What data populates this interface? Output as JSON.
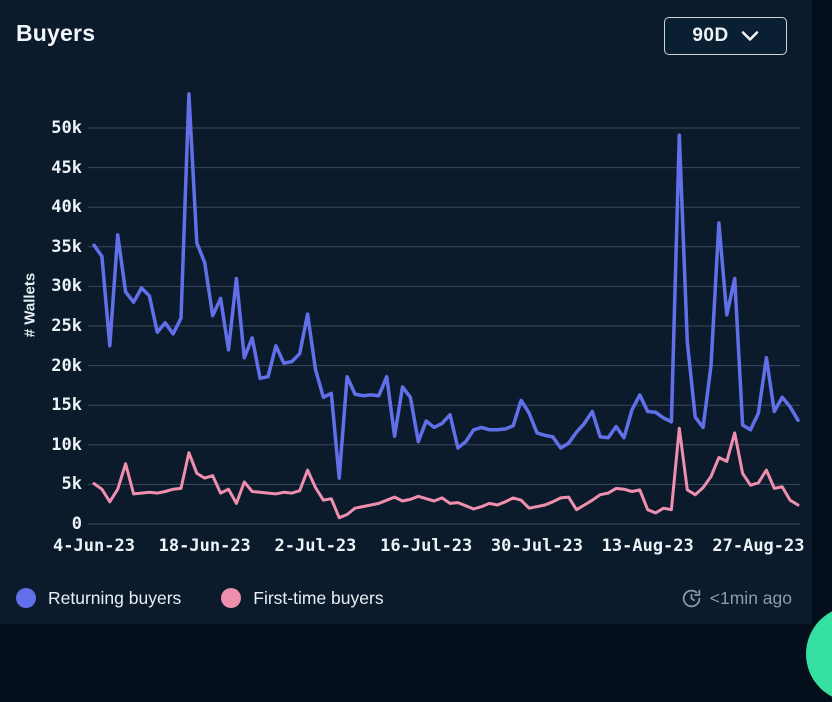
{
  "header": {
    "title": "Buyers",
    "range_selector": {
      "value": "90D"
    }
  },
  "chart_data": {
    "type": "line",
    "title": "Buyers",
    "xlabel": "",
    "ylabel": "# Wallets",
    "ylim": [
      0,
      55000
    ],
    "grid": true,
    "legend_position": "bottom",
    "y_ticks": [
      {
        "value": 0,
        "label": "0"
      },
      {
        "value": 5000,
        "label": "5k"
      },
      {
        "value": 10000,
        "label": "10k"
      },
      {
        "value": 15000,
        "label": "15k"
      },
      {
        "value": 20000,
        "label": "20k"
      },
      {
        "value": 25000,
        "label": "25k"
      },
      {
        "value": 30000,
        "label": "30k"
      },
      {
        "value": 35000,
        "label": "35k"
      },
      {
        "value": 40000,
        "label": "40k"
      },
      {
        "value": 45000,
        "label": "45k"
      },
      {
        "value": 50000,
        "label": "50k"
      }
    ],
    "x_ticks": [
      {
        "day": 0,
        "label": "4-Jun-23"
      },
      {
        "day": 14,
        "label": "18-Jun-23"
      },
      {
        "day": 28,
        "label": "2-Jul-23"
      },
      {
        "day": 42,
        "label": "16-Jul-23"
      },
      {
        "day": 56,
        "label": "30-Jul-23"
      },
      {
        "day": 70,
        "label": "13-Aug-23"
      },
      {
        "day": 84,
        "label": "27-Aug-23"
      }
    ],
    "series": [
      {
        "name": "Returning buyers",
        "color": "#6170e8",
        "values": [
          35200,
          33800,
          22500,
          36500,
          29300,
          28000,
          29800,
          28800,
          24200,
          25400,
          24000,
          26000,
          54300,
          35500,
          33000,
          26300,
          28500,
          22000,
          31000,
          21000,
          23500,
          18400,
          18600,
          22500,
          20300,
          20500,
          21500,
          26500,
          19500,
          16000,
          16500,
          5800,
          18600,
          16400,
          16200,
          16300,
          16200,
          18600,
          11100,
          17300,
          16000,
          10400,
          13000,
          12200,
          12700,
          13800,
          9600,
          10400,
          11900,
          12200,
          11900,
          11900,
          12000,
          12400,
          15600,
          14000,
          11500,
          11200,
          11000,
          9600,
          10200,
          11600,
          12700,
          14200,
          11000,
          10900,
          12300,
          10900,
          14400,
          16300,
          14200,
          14100,
          13400,
          12900,
          49100,
          23000,
          13500,
          12200,
          20000,
          38000,
          26400,
          31000,
          12500,
          11900,
          14000,
          21000,
          14200,
          16000,
          14800,
          13100
        ]
      },
      {
        "name": "First-time buyers",
        "color": "#ee8fae",
        "values": [
          5100,
          4400,
          2800,
          4400,
          7600,
          3800,
          3900,
          4000,
          3900,
          4100,
          4400,
          4500,
          9000,
          6400,
          5800,
          6100,
          3900,
          4400,
          2600,
          5300,
          4100,
          4000,
          3900,
          3800,
          4000,
          3900,
          4200,
          6800,
          4600,
          3000,
          3200,
          800,
          1200,
          2000,
          2200,
          2400,
          2600,
          3000,
          3400,
          2900,
          3100,
          3500,
          3200,
          2900,
          3300,
          2600,
          2700,
          2300,
          1900,
          2200,
          2600,
          2400,
          2800,
          3300,
          3000,
          2000,
          2200,
          2400,
          2800,
          3300,
          3400,
          1800,
          2400,
          3000,
          3700,
          3900,
          4500,
          4400,
          4100,
          4300,
          1800,
          1400,
          2000,
          1800,
          12100,
          4300,
          3700,
          4600,
          6000,
          8400,
          7900,
          11500,
          6400,
          4900,
          5200,
          6800,
          4500,
          4700,
          3000,
          2400
        ]
      }
    ]
  },
  "footer": {
    "updated": "<1min ago"
  },
  "colors": {
    "card_background": "#0b1b2c",
    "page_background": "#050f1c",
    "gridline": "rgba(166,190,210,0.30)",
    "text_primary": "#f2f6fa",
    "text_muted": "#8e9aa7",
    "returning_buyers": "#6170e8",
    "first_time_buyers": "#ee8fae",
    "fab_teal": "#35e0a1"
  }
}
